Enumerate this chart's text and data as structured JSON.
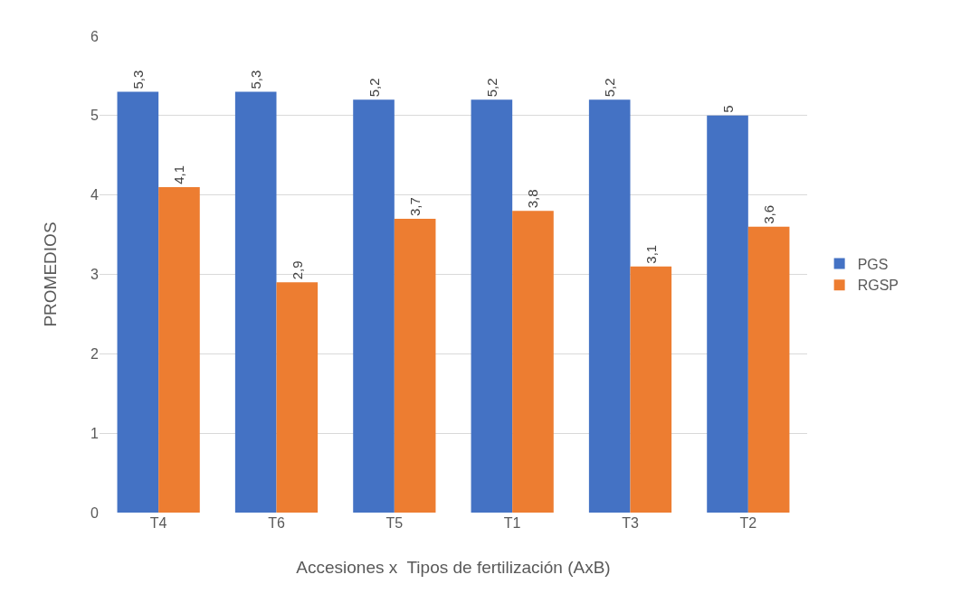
{
  "chart_data": {
    "type": "bar",
    "xlabel": "Accesiones x  Tipos de fertilización (AxB)",
    "ylabel": "PROMEDIOS",
    "categories": [
      "T4",
      "T6",
      "T5",
      "T1",
      "T3",
      "T2"
    ],
    "series": [
      {
        "name": "PGS",
        "color": "#4472c4",
        "values": [
          5.3,
          5.3,
          5.2,
          5.2,
          5.2,
          5.0
        ],
        "value_labels": [
          "5,3",
          "5,3",
          "5,2",
          "5,2",
          "5,2",
          "5"
        ]
      },
      {
        "name": "RGSP",
        "color": "#ed7d31",
        "values": [
          4.1,
          2.9,
          3.7,
          3.8,
          3.1,
          3.6
        ],
        "value_labels": [
          "4,1",
          "2,9",
          "3,7",
          "3,8",
          "3,1",
          "3,6"
        ]
      }
    ],
    "ylim": [
      0,
      6
    ],
    "yticks": [
      0,
      1,
      2,
      3,
      4,
      5,
      6
    ],
    "grid": "y",
    "legend": "right"
  }
}
